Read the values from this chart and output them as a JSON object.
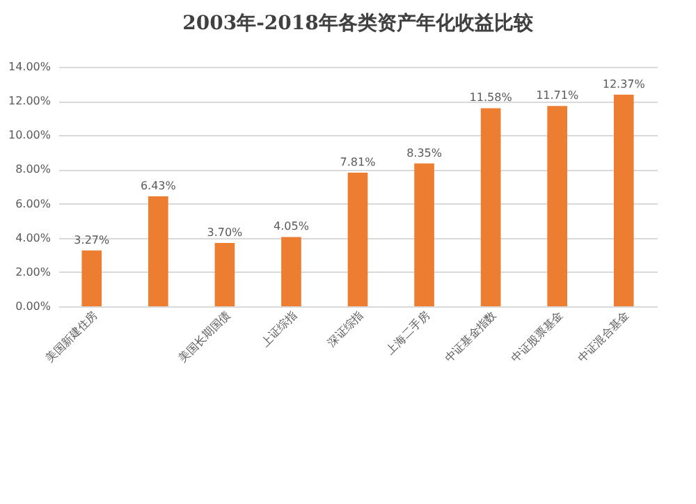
{
  "chart_data": {
    "type": "bar",
    "title": "2003年-2018年各类资产年化收益比较",
    "categories": [
      "美国新建住房",
      null,
      "美国长期国债",
      "上证综指",
      "深证综指",
      "上海二手房",
      "中证基金指数",
      "中证股票基金",
      "中证混合基金"
    ],
    "values": [
      3.27,
      6.43,
      3.7,
      4.05,
      7.81,
      8.35,
      11.58,
      11.71,
      12.37
    ],
    "value_labels": [
      "3.27%",
      "6.43%",
      "3.70%",
      "4.05%",
      "7.81%",
      "8.35%",
      "11.58%",
      "11.71%",
      "12.37%"
    ],
    "color": "#ed7d31",
    "ylim": [
      0,
      14
    ],
    "yticks": [
      {
        "value": 0,
        "label": "0.00%"
      },
      {
        "value": 2,
        "label": "2.00%"
      },
      {
        "value": 4,
        "label": "4.00%"
      },
      {
        "value": 6,
        "label": "6.00%"
      },
      {
        "value": 8,
        "label": "8.00%"
      },
      {
        "value": 10,
        "label": "10.00%"
      },
      {
        "value": 12,
        "label": "12.00%"
      },
      {
        "value": 14,
        "label": "14.00%"
      }
    ],
    "grid": "y"
  }
}
